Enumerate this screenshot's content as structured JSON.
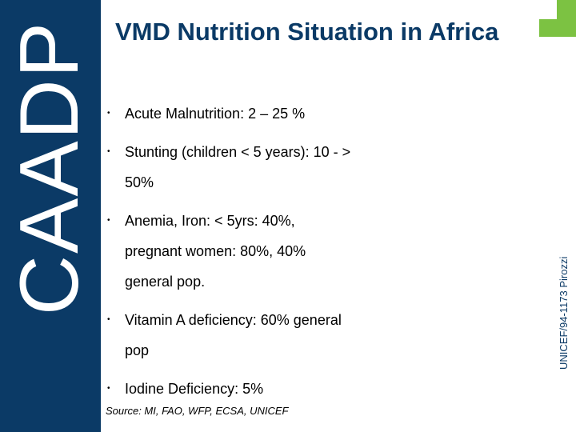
{
  "sidebar": {
    "logo_text": "CAADP"
  },
  "slide": {
    "title": "VMD Nutrition Situation in Africa",
    "bullets": [
      "Acute Malnutrition: 2 – 25 %",
      "Stunting (children < 5 years): 10 - > 50%",
      "Anemia, Iron: < 5yrs: 40%, pregnant women: 80%, 40% general pop.",
      "Vitamin A deficiency: 60% general pop",
      "Iodine Deficiency: 5%"
    ],
    "bullet_symbol": "•",
    "source": "Source: MI, FAO, WFP, ECSA, UNICEF",
    "photo_credit": "UNICEF/94-1173 Pirozzi"
  },
  "colors": {
    "navy": "#0b3a66",
    "green": "#7cc242"
  }
}
